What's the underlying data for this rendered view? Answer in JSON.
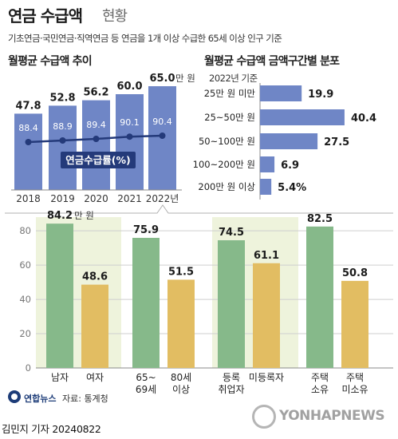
{
  "header": {
    "title_main": "연금 수급액",
    "title_sub": "현황",
    "subtitle": "기초연금·국민연금·직역연금 등 연금을 1개 이상 수급한 65세 이상 인구 기준"
  },
  "colors": {
    "bar_blue": "#6f86c6",
    "line_navy": "#243a7a",
    "bar_green": "#86b98a",
    "bar_gold": "#e2bd62",
    "bottom_bg": "#eef3dc"
  },
  "chart_data": [
    {
      "type": "bar",
      "title": "월평균 수급액 추이",
      "categories": [
        "2018",
        "2019",
        "2020",
        "2021",
        "2022년"
      ],
      "values": [
        47.8,
        52.8,
        56.2,
        60.0,
        65.0
      ],
      "value_labels": [
        "47.8",
        "52.8",
        "56.2",
        "60.0",
        "65.0"
      ],
      "unit": "만 원",
      "ylim": [
        0,
        70
      ],
      "overlay_line": {
        "name": "연금수급률(%)",
        "values": [
          88.4,
          88.9,
          89.4,
          90.1,
          90.4
        ],
        "value_labels": [
          "88.4",
          "88.9",
          "89.4",
          "90.1",
          "90.4"
        ]
      }
    },
    {
      "type": "bar",
      "orientation": "horizontal",
      "title": "월평균 수급액 금액구간별 분포",
      "note": "2022년 기준",
      "categories": [
        "25만 원 미만",
        "25~50만 원",
        "50~100만 원",
        "100~200만 원",
        "200만 원 이상"
      ],
      "values": [
        19.9,
        40.4,
        27.5,
        6.9,
        5.4
      ],
      "value_labels": [
        "19.9",
        "40.4",
        "27.5",
        "6.9",
        "5.4%"
      ],
      "unit": "%",
      "xlim": [
        0,
        45
      ]
    },
    {
      "type": "bar",
      "grid": true,
      "yticks": [
        "0",
        "20",
        "40",
        "60",
        "80"
      ],
      "ylim": [
        0,
        88
      ],
      "unit": "만 원",
      "groups": [
        {
          "labels": [
            "남자",
            "여자"
          ],
          "values": [
            84.2,
            48.6
          ],
          "value_labels": [
            "84.2",
            "48.6"
          ]
        },
        {
          "labels": [
            "65~ 69세",
            "80세 이상"
          ],
          "values": [
            75.9,
            51.5
          ],
          "value_labels": [
            "75.9",
            "51.5"
          ]
        },
        {
          "labels": [
            "등록 취업자",
            "미등록자"
          ],
          "values": [
            74.5,
            61.1
          ],
          "value_labels": [
            "74.5",
            "61.1"
          ]
        },
        {
          "labels": [
            "주택 소유",
            "주택 미소유"
          ],
          "values": [
            82.5,
            50.8
          ],
          "value_labels": [
            "82.5",
            "50.8"
          ]
        }
      ],
      "tick_lines": [
        [
          "남자"
        ],
        [
          "여자"
        ],
        [
          "65~",
          "69세"
        ],
        [
          "80세",
          "이상"
        ],
        [
          "등록",
          "취업자"
        ],
        [
          "미등록자"
        ],
        [
          "주택",
          "소유"
        ],
        [
          "주택",
          "미소유"
        ]
      ]
    }
  ],
  "footer": {
    "logo_text": "연합뉴스",
    "source": "자료: 통계청",
    "reporter": "김민지 기자  20240822",
    "watermark": "YONHAPNEWS"
  }
}
